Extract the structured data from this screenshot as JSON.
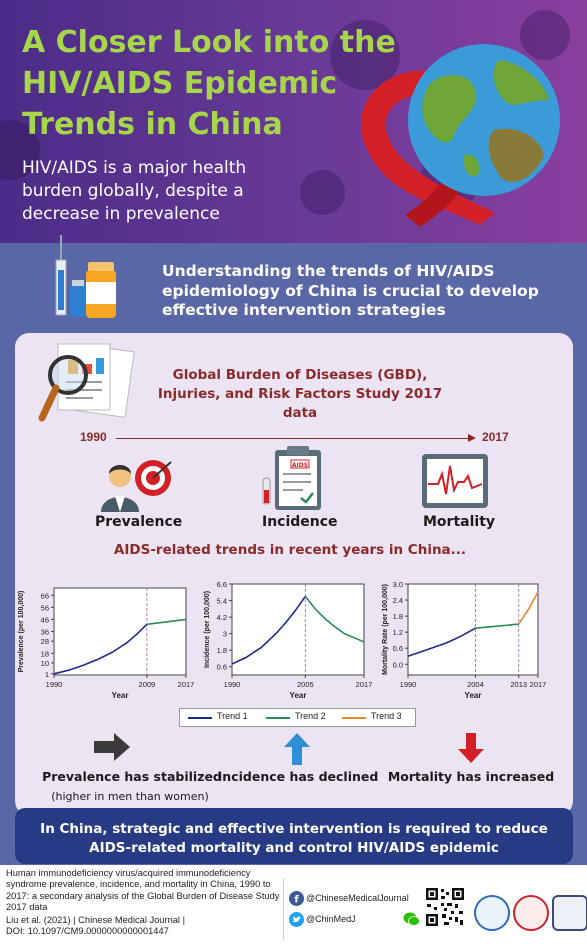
{
  "header": {
    "title": "A Closer Look into the HIV/AIDS Epidemic Trends in China",
    "subtitle": "HIV/AIDS is a major health burden globally, despite a decrease in prevalence"
  },
  "band": {
    "text": "Understanding the trends of HIV/AIDS epidemiology of China is crucial to develop effective intervention strategies"
  },
  "gbd": {
    "text": "Global Burden of Diseases (GBD), Injuries, and Risk Factors Study 2017 data"
  },
  "timeline": {
    "start": "1990",
    "end": "2017"
  },
  "metrics": {
    "prevalence": "Prevalence",
    "incidence": "Incidence",
    "mortality": "Mortality"
  },
  "clipboard_tag": "AIDS",
  "recent_title": "AIDS-related trends in recent years in China...",
  "chart_data": [
    {
      "type": "line",
      "ylabel": "Prevalence (per 100,000)",
      "xlabel": "Year",
      "x_ticks": [
        "1990",
        "2009",
        "2017"
      ],
      "y_ticks": [
        1,
        10,
        18,
        28,
        36,
        46,
        56,
        66
      ],
      "ylim": [
        0,
        72
      ],
      "xlim": [
        1990,
        2017
      ],
      "dashed_marker": 2009,
      "series": [
        {
          "name": "Trend 1",
          "color": "#1f2a8c",
          "x": [
            1990,
            1993,
            1996,
            1999,
            2002,
            2005,
            2007,
            2009
          ],
          "y": [
            1,
            4,
            8,
            13,
            19,
            27,
            34,
            42
          ]
        },
        {
          "name": "Trend 2",
          "color": "#2e8b57",
          "x": [
            2009,
            2017
          ],
          "y": [
            42,
            46
          ]
        }
      ]
    },
    {
      "type": "line",
      "ylabel": "Incidence (per 100,000)",
      "xlabel": "Year",
      "x_ticks": [
        "1990",
        "2005",
        "2017"
      ],
      "y_ticks": [
        0.6,
        1.8,
        3.0,
        4.2,
        5.4,
        6.6
      ],
      "ylim": [
        0,
        6.6
      ],
      "xlim": [
        1990,
        2017
      ],
      "dashed_marker": 2005,
      "series": [
        {
          "name": "Trend 1",
          "color": "#1f2a8c",
          "x": [
            1990,
            1993,
            1996,
            1999,
            2001,
            2003,
            2005
          ],
          "y": [
            0.8,
            1.3,
            2.0,
            3.0,
            3.8,
            4.7,
            5.7
          ]
        },
        {
          "name": "Trend 2",
          "color": "#2e8b57",
          "x": [
            2005,
            2007,
            2009,
            2011,
            2013,
            2015,
            2017
          ],
          "y": [
            5.7,
            4.8,
            4.1,
            3.5,
            3.0,
            2.7,
            2.4
          ]
        }
      ]
    },
    {
      "type": "line",
      "ylabel": "Mortality Rate (per 100,000)",
      "xlabel": "Year",
      "x_ticks": [
        "1990",
        "2004",
        "2013",
        "2017"
      ],
      "y_ticks": [
        0.0,
        0.6,
        1.2,
        1.8,
        2.4,
        3.0
      ],
      "y_tick_labels": [
        "0.0",
        "0.6",
        "1.2",
        "1.8",
        "2.4",
        "3.0"
      ],
      "ylim": [
        -0.4,
        3.0
      ],
      "xlim": [
        1990,
        2017
      ],
      "dashed_marker": [
        2004,
        2013
      ],
      "series": [
        {
          "name": "Trend 1",
          "color": "#1f2a8c",
          "x": [
            1990,
            1994,
            1998,
            2001,
            2004
          ],
          "y": [
            0.3,
            0.55,
            0.8,
            1.05,
            1.35
          ]
        },
        {
          "name": "Trend 2",
          "color": "#2e8b57",
          "x": [
            2004,
            2013
          ],
          "y": [
            1.35,
            1.5
          ]
        },
        {
          "name": "Trend 3",
          "color": "#e8892c",
          "x": [
            2013,
            2015,
            2017
          ],
          "y": [
            1.5,
            2.05,
            2.7
          ]
        }
      ]
    }
  ],
  "legend": {
    "trend1": "Trend 1",
    "trend2": "Trend 2",
    "trend3": "Trend 3"
  },
  "statements": {
    "prevalence": "Prevalence has stabilized",
    "prevalence_note": "(higher in men than women)",
    "incidence": "Incidence has declined",
    "mortality": "Mortality has increased"
  },
  "conclusion": "In China, strategic and effective intervention is required to reduce AIDS-related mortality and control HIV/AIDS epidemic",
  "footer": {
    "citation": "Human immunodeficiency virus/acquired immunodeficiency syndrome prevalence, incidence, and mortality in China, 1990 to 2017: a secondary analysis of the Global Burden of Disease Study 2017 data",
    "authors": "Liu et al. (2021) | Chinese Medical Journal |",
    "doi": "DOI: 10.1097/CM9.0000000000001447",
    "facebook": "@ChineseMedicalJournal",
    "twitter": "@ChinMedJ"
  },
  "colors": {
    "title_green": "#a8d64a",
    "hero_purple": "#5b3590",
    "band_blue": "#5a67a6",
    "card_lavender": "#ede4f3",
    "accent_red": "#8b2a2a",
    "conclusion_navy": "#273b84"
  },
  "icons": [
    "ribbon-icon",
    "globe-icon",
    "vaccine-icon",
    "report-magnifier-icon",
    "target-person-icon",
    "clipboard-icon",
    "ecg-monitor-icon",
    "arrow-right-icon",
    "arrow-up-icon",
    "arrow-down-icon",
    "facebook-icon",
    "twitter-icon",
    "wechat-icon",
    "qr-code-icon"
  ]
}
